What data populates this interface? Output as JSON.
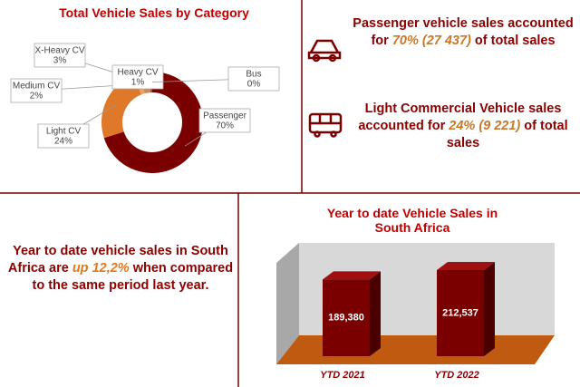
{
  "chart_data": [
    {
      "type": "donut",
      "title": "Total Vehicle Sales by Category",
      "categories": [
        "Passenger",
        "Light CV",
        "Medium CV",
        "X-Heavy CV",
        "Heavy CV",
        "Bus"
      ],
      "values": [
        70,
        24,
        2,
        3,
        1,
        0
      ],
      "value_labels": [
        "70%",
        "24%",
        "2%",
        "3%",
        "1%",
        "0%"
      ],
      "colors": [
        "#7a0000",
        "#e0782a",
        "#f0a060",
        "#c98a5a",
        "#b05020",
        "#999999"
      ]
    },
    {
      "type": "bar3d",
      "title": "Year to date Vehicle Sales in South Africa",
      "categories": [
        "YTD 2021",
        "YTD 2022"
      ],
      "values": [
        189380,
        212537
      ],
      "value_labels": [
        "189,380",
        "212,537"
      ],
      "color": "#7a0000"
    }
  ],
  "panels": {
    "passenger": {
      "before": "Passenger vehicle sales accounted for ",
      "highlight": "70% (27 437)",
      "after": " of total sales"
    },
    "lcv": {
      "before": "Light Commercial Vehicle sales accounted for ",
      "highlight": "24% (9 221)",
      "after": " of total sales"
    },
    "ytd": {
      "before": "Year to date vehicle sales in South Africa are ",
      "highlight": "up 12,2%",
      "after": " when compared to the same period last year."
    }
  }
}
